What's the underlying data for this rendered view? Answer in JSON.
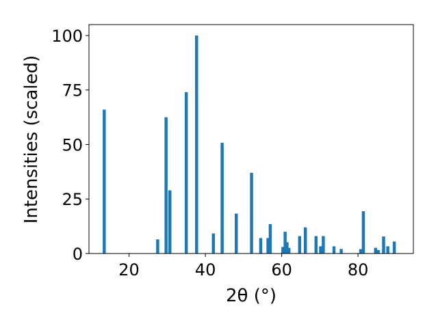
{
  "chart_data": {
    "type": "bar",
    "xlabel": "2θ (°)",
    "ylabel": "Intensities (scaled)",
    "xlim": [
      9.5,
      94.5
    ],
    "ylim": [
      0,
      105
    ],
    "x_ticks": [
      20,
      40,
      60,
      80
    ],
    "y_ticks": [
      0,
      25,
      50,
      75,
      100
    ],
    "grid": false,
    "bar_width": 0.8,
    "bar_color": "#1f77b4",
    "points": [
      {
        "x": 13.5,
        "y": 66
      },
      {
        "x": 27.5,
        "y": 6.5
      },
      {
        "x": 29.7,
        "y": 62.5
      },
      {
        "x": 30.7,
        "y": 29
      },
      {
        "x": 35.0,
        "y": 74
      },
      {
        "x": 37.7,
        "y": 100
      },
      {
        "x": 42.1,
        "y": 9.2
      },
      {
        "x": 44.4,
        "y": 50.8
      },
      {
        "x": 48.1,
        "y": 18.3
      },
      {
        "x": 52.1,
        "y": 37
      },
      {
        "x": 54.5,
        "y": 7.1
      },
      {
        "x": 56.4,
        "y": 7.1
      },
      {
        "x": 57.0,
        "y": 13.5
      },
      {
        "x": 60.3,
        "y": 3
      },
      {
        "x": 60.9,
        "y": 10
      },
      {
        "x": 61.4,
        "y": 5.2
      },
      {
        "x": 61.9,
        "y": 2.6
      },
      {
        "x": 64.7,
        "y": 8
      },
      {
        "x": 66.2,
        "y": 12
      },
      {
        "x": 69.0,
        "y": 8
      },
      {
        "x": 70.2,
        "y": 3.3
      },
      {
        "x": 70.9,
        "y": 8
      },
      {
        "x": 73.7,
        "y": 3.3
      },
      {
        "x": 75.6,
        "y": 2.1
      },
      {
        "x": 80.7,
        "y": 2
      },
      {
        "x": 81.4,
        "y": 19.4
      },
      {
        "x": 84.6,
        "y": 2.6
      },
      {
        "x": 85.3,
        "y": 1.6
      },
      {
        "x": 86.7,
        "y": 7.8
      },
      {
        "x": 87.8,
        "y": 3.3
      },
      {
        "x": 89.5,
        "y": 5.5
      }
    ]
  }
}
